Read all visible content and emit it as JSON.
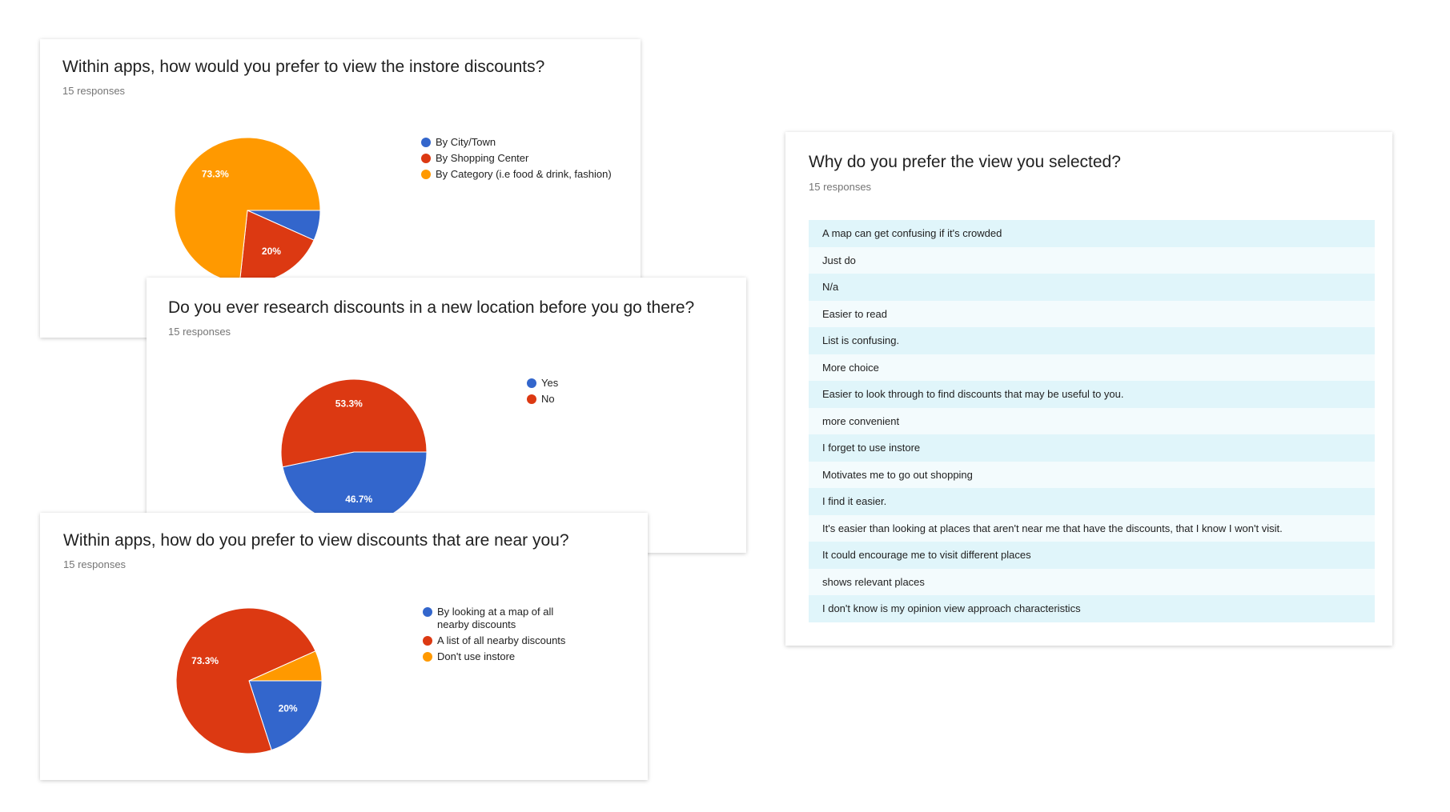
{
  "chart_data": [
    {
      "type": "pie",
      "title": "Within apps, how would you prefer to view the instore discounts?",
      "subtitle": "15 responses",
      "categories": [
        "By City/Town",
        "By Shopping Center",
        "By Category (i.e food & drink, fashion)"
      ],
      "values": [
        6.7,
        20,
        73.3
      ],
      "value_labels": [
        null,
        "20%",
        "73.3%"
      ],
      "colors": [
        "#3366cc",
        "#dc3912",
        "#ff9900"
      ]
    },
    {
      "type": "pie",
      "title": "Do you ever research discounts in a new location before you go there?",
      "subtitle": "15 responses",
      "categories": [
        "Yes",
        "No"
      ],
      "values": [
        46.7,
        53.3
      ],
      "value_labels": [
        "46.7%",
        "53.3%"
      ],
      "colors": [
        "#3366cc",
        "#dc3912"
      ]
    },
    {
      "type": "pie",
      "title": "Within apps, how do you prefer to view discounts that are near you?",
      "subtitle": "15 responses",
      "categories": [
        "By looking at a map of all nearby discounts",
        "A list of all nearby discounts",
        "Don't use instore"
      ],
      "values": [
        20,
        73.3,
        6.7
      ],
      "value_labels": [
        "20%",
        "73.3%",
        null
      ],
      "colors": [
        "#3366cc",
        "#dc3912",
        "#ff9900"
      ]
    }
  ],
  "text_card": {
    "title": "Why do you prefer the view you selected?",
    "subtitle": "15 responses",
    "responses": [
      "A map can get confusing if it's crowded",
      "Just do",
      "N/a",
      "Easier to read",
      "List is confusing.",
      "More choice",
      "Easier to look through to find discounts that may be useful to you.",
      "more convenient",
      "I forget to use instore",
      "Motivates me to go out shopping",
      "I find it easier.",
      "It's easier than looking at places that aren't near me that have the discounts, that I know I won't visit.",
      "It could encourage me to visit different places",
      "shows relevant places",
      "I don't know is my opinion view approach characteristics"
    ]
  }
}
